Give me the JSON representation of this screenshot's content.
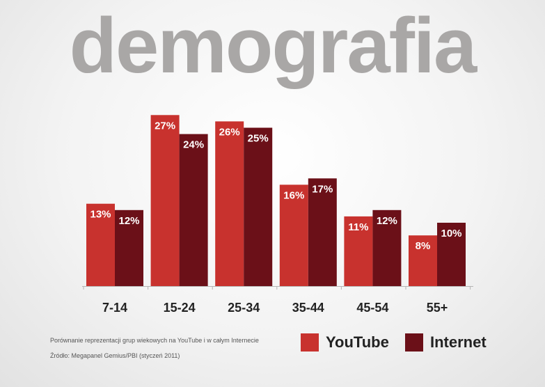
{
  "title": "demografia",
  "chart_data": {
    "type": "bar",
    "categories": [
      "7-14",
      "15-24",
      "25-34",
      "35-44",
      "45-54",
      "55+"
    ],
    "series": [
      {
        "name": "YouTube",
        "values": [
          13,
          27,
          26,
          16,
          11,
          8
        ],
        "labels": [
          "13%",
          "27%",
          "26%",
          "16%",
          "11%",
          "8%"
        ],
        "color": "#c8322e"
      },
      {
        "name": "Internet",
        "values": [
          12,
          24,
          25,
          17,
          12,
          10
        ],
        "labels": [
          "12%",
          "24%",
          "25%",
          "17%",
          "12%",
          "10%"
        ],
        "color": "#6b1018"
      }
    ],
    "ylim": [
      0,
      30
    ],
    "grid": false,
    "legend": "bottom-right"
  },
  "notes": {
    "description": "Porównanie reprezentacji grup wiekowych na YouTube i w całym Internecie",
    "source": "Źródło: Megapanel Gemius/PBI (styczeń 2011)"
  },
  "legend": {
    "youtube": "YouTube",
    "internet": "Internet"
  }
}
